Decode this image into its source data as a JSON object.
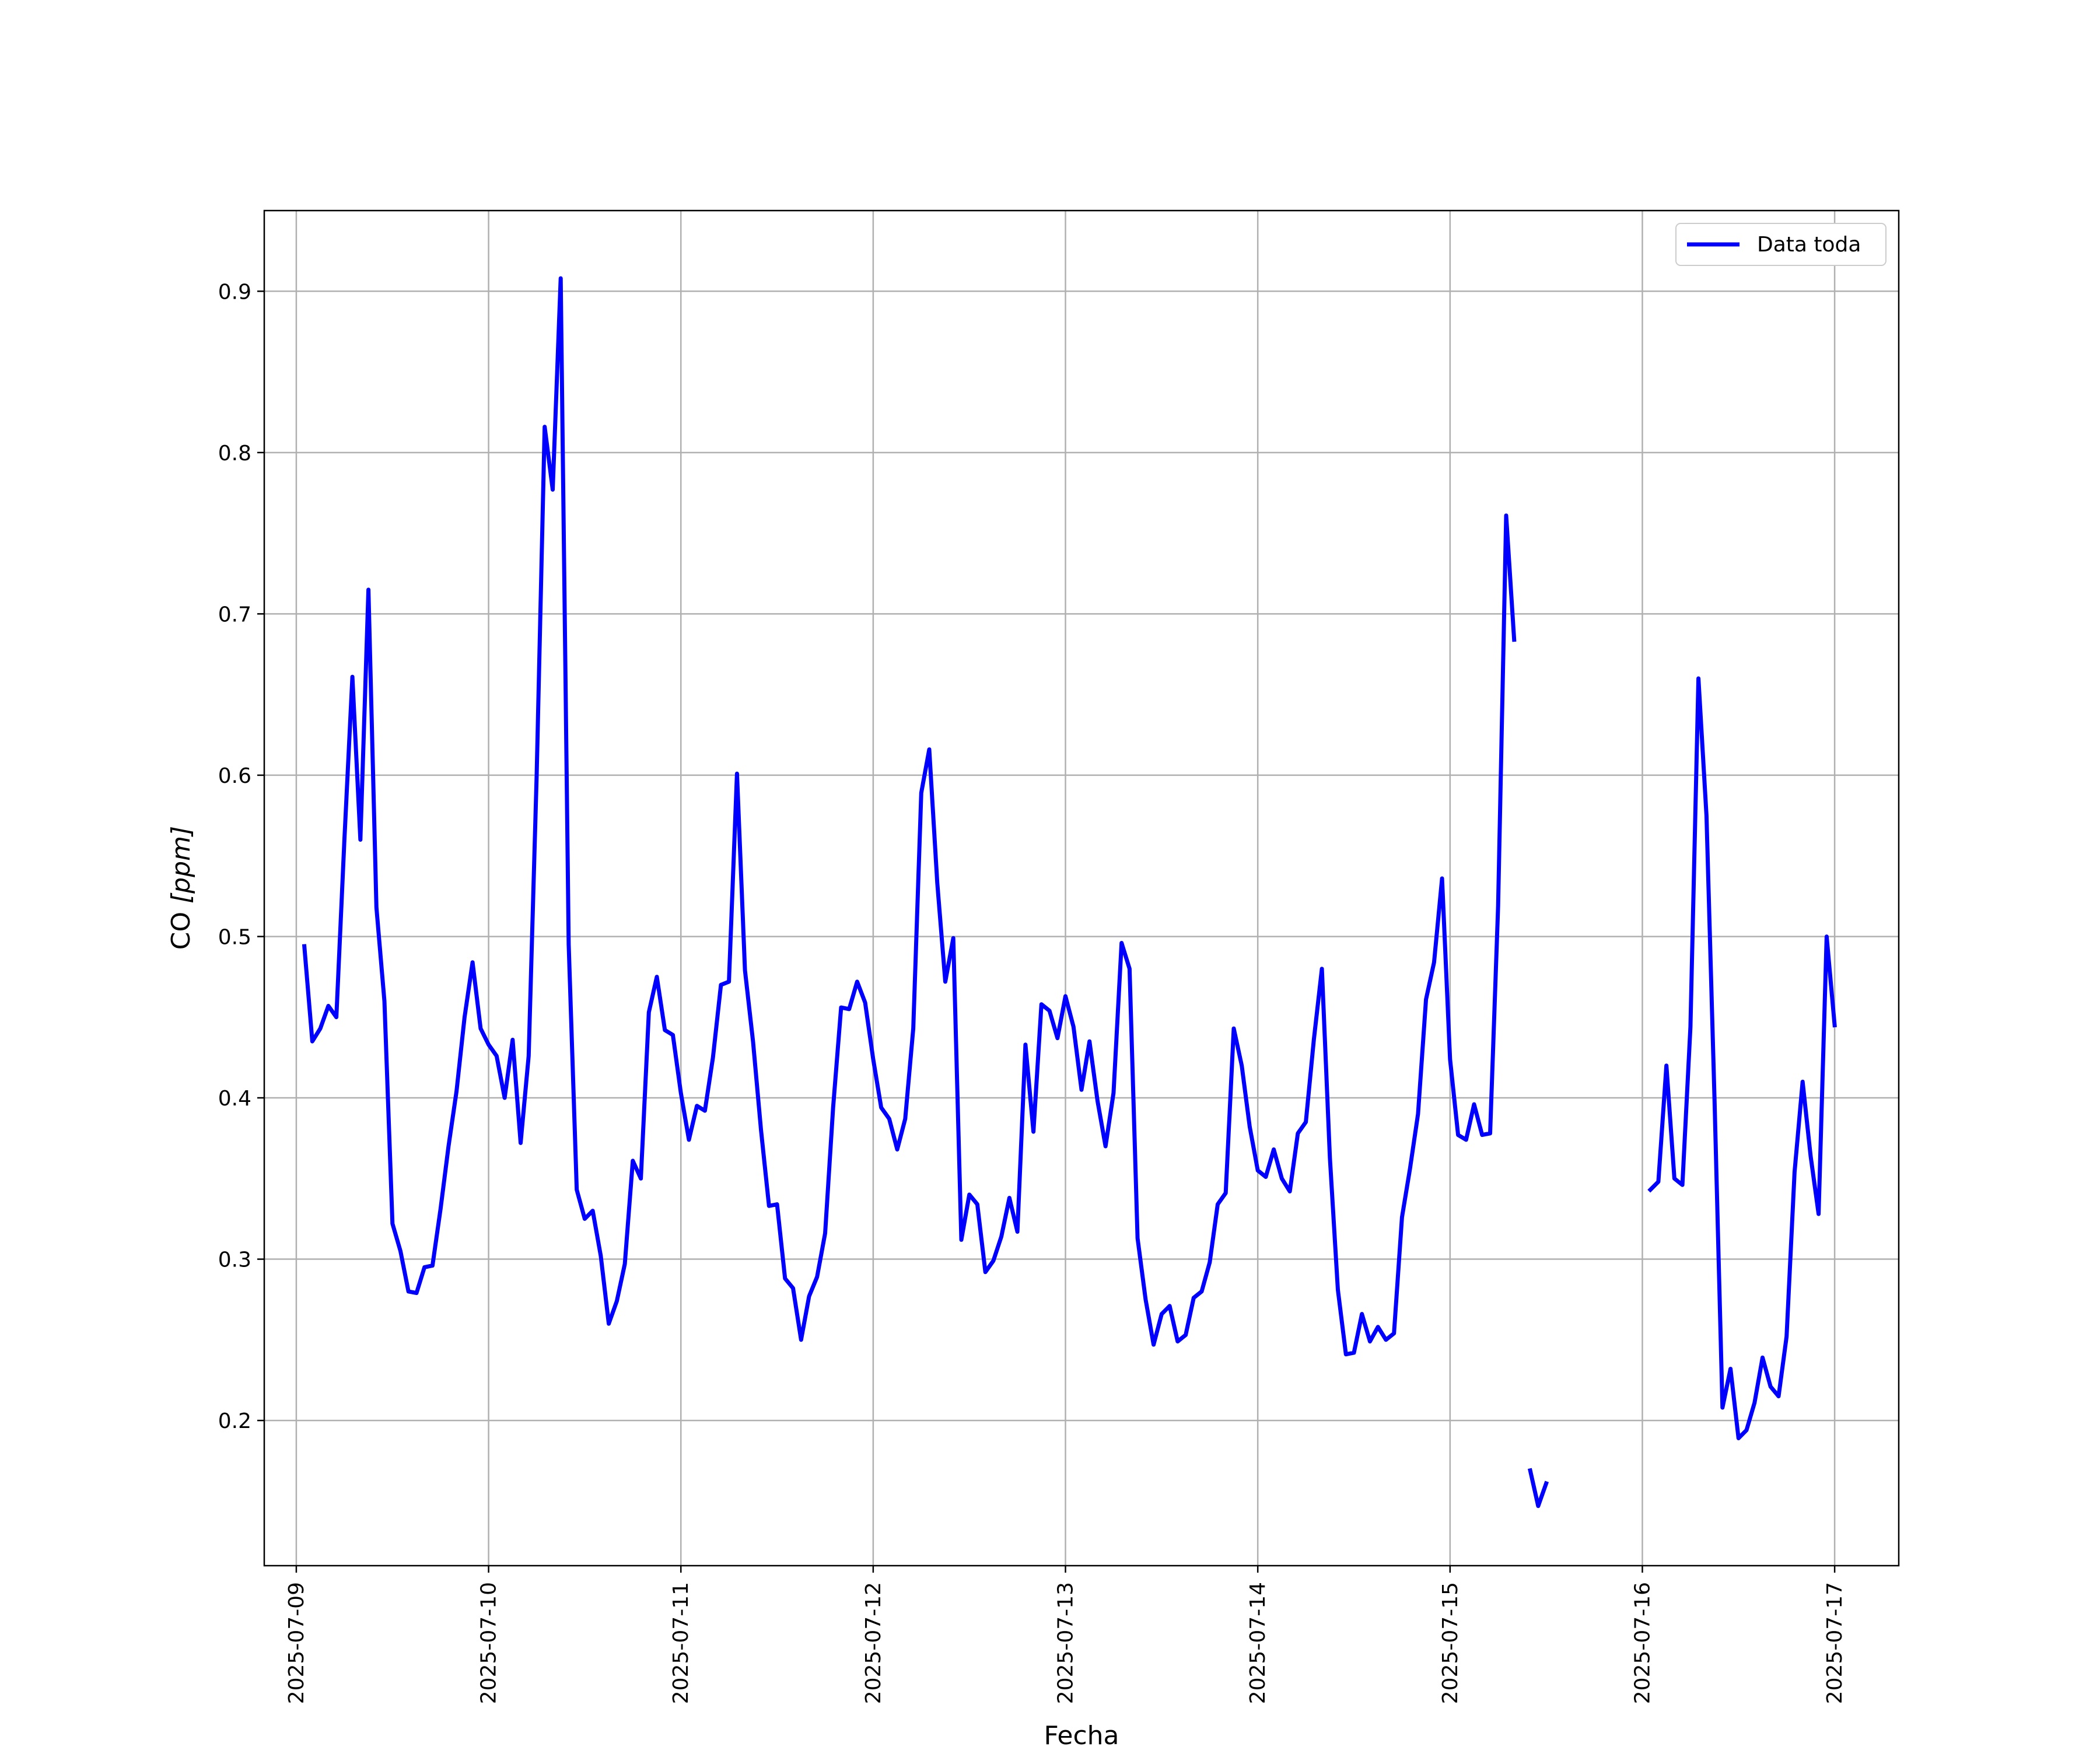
{
  "chart_data": {
    "type": "line",
    "xlabel": "Fecha",
    "ylabel_main": "CO ",
    "ylabel_unit": "[ppm]",
    "xlim": [
      "2025-07-08 20:00",
      "2025-07-17 08:00"
    ],
    "ylim": [
      0.11,
      0.95
    ],
    "grid": true,
    "legend_position": "top-right",
    "x_ticks": [
      "2025-07-09",
      "2025-07-10",
      "2025-07-11",
      "2025-07-12",
      "2025-07-13",
      "2025-07-14",
      "2025-07-15",
      "2025-07-16",
      "2025-07-17"
    ],
    "y_ticks": [
      "0.2",
      "0.3",
      "0.4",
      "0.5",
      "0.6",
      "0.7",
      "0.8",
      "0.9"
    ],
    "series": [
      {
        "name": "Data toda",
        "color": "#0000ff",
        "segments": [
          [
            [
              "2025-07-09 01:00",
              0.494
            ],
            [
              "2025-07-09 02:00",
              0.435
            ],
            [
              "2025-07-09 03:00",
              0.443
            ],
            [
              "2025-07-09 04:00",
              0.457
            ],
            [
              "2025-07-09 05:00",
              0.45
            ],
            [
              "2025-07-09 06:00",
              0.56
            ],
            [
              "2025-07-09 07:00",
              0.661
            ],
            [
              "2025-07-09 08:00",
              0.56
            ],
            [
              "2025-07-09 09:00",
              0.715
            ],
            [
              "2025-07-09 10:00",
              0.518
            ],
            [
              "2025-07-09 11:00",
              0.46
            ],
            [
              "2025-07-09 12:00",
              0.322
            ],
            [
              "2025-07-09 13:00",
              0.305
            ],
            [
              "2025-07-09 14:00",
              0.28
            ],
            [
              "2025-07-09 15:00",
              0.279
            ],
            [
              "2025-07-09 16:00",
              0.295
            ],
            [
              "2025-07-09 17:00",
              0.296
            ],
            [
              "2025-07-09 18:00",
              0.331
            ],
            [
              "2025-07-09 19:00",
              0.37
            ],
            [
              "2025-07-09 20:00",
              0.404
            ],
            [
              "2025-07-09 21:00",
              0.45
            ],
            [
              "2025-07-09 22:00",
              0.484
            ],
            [
              "2025-07-09 23:00",
              0.443
            ],
            [
              "2025-07-10 00:00",
              0.433
            ],
            [
              "2025-07-10 01:00",
              0.426
            ],
            [
              "2025-07-10 02:00",
              0.4
            ],
            [
              "2025-07-10 03:00",
              0.436
            ],
            [
              "2025-07-10 04:00",
              0.372
            ],
            [
              "2025-07-10 05:00",
              0.426
            ],
            [
              "2025-07-10 06:00",
              0.6
            ],
            [
              "2025-07-10 07:00",
              0.816
            ],
            [
              "2025-07-10 08:00",
              0.777
            ],
            [
              "2025-07-10 09:00",
              0.908
            ],
            [
              "2025-07-10 10:00",
              0.495
            ],
            [
              "2025-07-10 11:00",
              0.343
            ],
            [
              "2025-07-10 12:00",
              0.325
            ],
            [
              "2025-07-10 13:00",
              0.33
            ],
            [
              "2025-07-10 14:00",
              0.302
            ],
            [
              "2025-07-10 15:00",
              0.26
            ],
            [
              "2025-07-10 16:00",
              0.274
            ],
            [
              "2025-07-10 17:00",
              0.297
            ],
            [
              "2025-07-10 18:00",
              0.361
            ],
            [
              "2025-07-10 19:00",
              0.35
            ],
            [
              "2025-07-10 20:00",
              0.453
            ],
            [
              "2025-07-10 21:00",
              0.475
            ],
            [
              "2025-07-10 22:00",
              0.442
            ],
            [
              "2025-07-10 23:00",
              0.439
            ],
            [
              "2025-07-11 00:00",
              0.403
            ],
            [
              "2025-07-11 01:00",
              0.374
            ],
            [
              "2025-07-11 02:00",
              0.395
            ],
            [
              "2025-07-11 03:00",
              0.392
            ],
            [
              "2025-07-11 04:00",
              0.425
            ],
            [
              "2025-07-11 05:00",
              0.47
            ],
            [
              "2025-07-11 06:00",
              0.472
            ],
            [
              "2025-07-11 07:00",
              0.601
            ],
            [
              "2025-07-11 08:00",
              0.479
            ],
            [
              "2025-07-11 09:00",
              0.435
            ],
            [
              "2025-07-11 10:00",
              0.38
            ],
            [
              "2025-07-11 11:00",
              0.333
            ],
            [
              "2025-07-11 12:00",
              0.334
            ],
            [
              "2025-07-11 13:00",
              0.288
            ],
            [
              "2025-07-11 14:00",
              0.282
            ],
            [
              "2025-07-11 15:00",
              0.25
            ],
            [
              "2025-07-11 16:00",
              0.277
            ],
            [
              "2025-07-11 17:00",
              0.289
            ],
            [
              "2025-07-11 18:00",
              0.316
            ],
            [
              "2025-07-11 19:00",
              0.394
            ],
            [
              "2025-07-11 20:00",
              0.456
            ],
            [
              "2025-07-11 21:00",
              0.455
            ],
            [
              "2025-07-11 22:00",
              0.472
            ],
            [
              "2025-07-11 23:00",
              0.459
            ],
            [
              "2025-07-12 00:00",
              0.424
            ],
            [
              "2025-07-12 01:00",
              0.394
            ],
            [
              "2025-07-12 02:00",
              0.387
            ],
            [
              "2025-07-12 03:00",
              0.368
            ],
            [
              "2025-07-12 04:00",
              0.387
            ],
            [
              "2025-07-12 05:00",
              0.443
            ],
            [
              "2025-07-12 06:00",
              0.589
            ],
            [
              "2025-07-12 07:00",
              0.616
            ],
            [
              "2025-07-12 08:00",
              0.533
            ],
            [
              "2025-07-12 09:00",
              0.472
            ],
            [
              "2025-07-12 10:00",
              0.499
            ],
            [
              "2025-07-12 11:00",
              0.312
            ],
            [
              "2025-07-12 12:00",
              0.34
            ],
            [
              "2025-07-12 13:00",
              0.334
            ],
            [
              "2025-07-12 14:00",
              0.292
            ],
            [
              "2025-07-12 15:00",
              0.299
            ],
            [
              "2025-07-12 16:00",
              0.314
            ],
            [
              "2025-07-12 17:00",
              0.338
            ],
            [
              "2025-07-12 18:00",
              0.317
            ],
            [
              "2025-07-12 19:00",
              0.433
            ],
            [
              "2025-07-12 20:00",
              0.379
            ],
            [
              "2025-07-12 21:00",
              0.458
            ],
            [
              "2025-07-12 22:00",
              0.454
            ],
            [
              "2025-07-12 23:00",
              0.437
            ],
            [
              "2025-07-13 00:00",
              0.463
            ],
            [
              "2025-07-13 01:00",
              0.444
            ],
            [
              "2025-07-13 02:00",
              0.405
            ],
            [
              "2025-07-13 03:00",
              0.435
            ],
            [
              "2025-07-13 04:00",
              0.398
            ],
            [
              "2025-07-13 05:00",
              0.37
            ],
            [
              "2025-07-13 06:00",
              0.403
            ],
            [
              "2025-07-13 07:00",
              0.496
            ],
            [
              "2025-07-13 08:00",
              0.48
            ],
            [
              "2025-07-13 09:00",
              0.313
            ],
            [
              "2025-07-13 10:00",
              0.275
            ],
            [
              "2025-07-13 11:00",
              0.247
            ],
            [
              "2025-07-13 12:00",
              0.266
            ],
            [
              "2025-07-13 13:00",
              0.271
            ],
            [
              "2025-07-13 14:00",
              0.249
            ],
            [
              "2025-07-13 15:00",
              0.253
            ],
            [
              "2025-07-13 16:00",
              0.276
            ],
            [
              "2025-07-13 17:00",
              0.28
            ],
            [
              "2025-07-13 18:00",
              0.298
            ],
            [
              "2025-07-13 19:00",
              0.334
            ],
            [
              "2025-07-13 20:00",
              0.341
            ],
            [
              "2025-07-13 21:00",
              0.443
            ],
            [
              "2025-07-13 22:00",
              0.42
            ],
            [
              "2025-07-13 23:00",
              0.382
            ],
            [
              "2025-07-14 00:00",
              0.355
            ],
            [
              "2025-07-14 01:00",
              0.351
            ],
            [
              "2025-07-14 02:00",
              0.368
            ],
            [
              "2025-07-14 03:00",
              0.35
            ],
            [
              "2025-07-14 04:00",
              0.342
            ],
            [
              "2025-07-14 05:00",
              0.378
            ],
            [
              "2025-07-14 06:00",
              0.385
            ],
            [
              "2025-07-14 07:00",
              0.436
            ],
            [
              "2025-07-14 08:00",
              0.48
            ],
            [
              "2025-07-14 09:00",
              0.363
            ],
            [
              "2025-07-14 10:00",
              0.281
            ],
            [
              "2025-07-14 11:00",
              0.241
            ],
            [
              "2025-07-14 12:00",
              0.242
            ],
            [
              "2025-07-14 13:00",
              0.266
            ],
            [
              "2025-07-14 14:00",
              0.249
            ],
            [
              "2025-07-14 15:00",
              0.258
            ],
            [
              "2025-07-14 16:00",
              0.25
            ],
            [
              "2025-07-14 17:00",
              0.254
            ],
            [
              "2025-07-14 18:00",
              0.326
            ],
            [
              "2025-07-14 19:00",
              0.356
            ],
            [
              "2025-07-14 20:00",
              0.39
            ],
            [
              "2025-07-14 21:00",
              0.461
            ],
            [
              "2025-07-14 22:00",
              0.484
            ],
            [
              "2025-07-14 23:00",
              0.536
            ],
            [
              "2025-07-15 00:00",
              0.424
            ],
            [
              "2025-07-15 01:00",
              0.377
            ],
            [
              "2025-07-15 02:00",
              0.374
            ],
            [
              "2025-07-15 03:00",
              0.396
            ],
            [
              "2025-07-15 04:00",
              0.377
            ],
            [
              "2025-07-15 05:00",
              0.378
            ],
            [
              "2025-07-15 06:00",
              0.519
            ],
            [
              "2025-07-15 07:00",
              0.761
            ],
            [
              "2025-07-15 08:00",
              0.684
            ]
          ],
          [
            [
              "2025-07-15 10:00",
              0.169
            ],
            [
              "2025-07-15 11:00",
              0.147
            ],
            [
              "2025-07-15 12:00",
              0.161
            ]
          ],
          [
            [
              "2025-07-16 01:00",
              0.343
            ],
            [
              "2025-07-16 02:00",
              0.348
            ],
            [
              "2025-07-16 03:00",
              0.42
            ],
            [
              "2025-07-16 04:00",
              0.35
            ],
            [
              "2025-07-16 05:00",
              0.346
            ],
            [
              "2025-07-16 06:00",
              0.444
            ],
            [
              "2025-07-16 07:00",
              0.66
            ],
            [
              "2025-07-16 08:00",
              0.575
            ],
            [
              "2025-07-16 09:00",
              0.4
            ],
            [
              "2025-07-16 10:00",
              0.208
            ],
            [
              "2025-07-16 11:00",
              0.232
            ],
            [
              "2025-07-16 12:00",
              0.189
            ],
            [
              "2025-07-16 13:00",
              0.194
            ],
            [
              "2025-07-16 14:00",
              0.211
            ],
            [
              "2025-07-16 15:00",
              0.239
            ],
            [
              "2025-07-16 16:00",
              0.221
            ],
            [
              "2025-07-16 17:00",
              0.215
            ],
            [
              "2025-07-16 18:00",
              0.252
            ],
            [
              "2025-07-16 19:00",
              0.354
            ],
            [
              "2025-07-16 20:00",
              0.41
            ],
            [
              "2025-07-16 21:00",
              0.364
            ],
            [
              "2025-07-16 22:00",
              0.328
            ],
            [
              "2025-07-16 23:00",
              0.5
            ],
            [
              "2025-07-17 00:00",
              0.445
            ]
          ]
        ]
      }
    ]
  }
}
